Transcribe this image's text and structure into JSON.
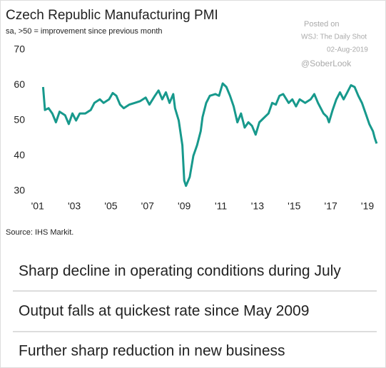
{
  "chart_data": {
    "type": "line",
    "title": "Czech Republic Manufacturing PMI",
    "subtitle": "sa, >50 = improvement since previous month",
    "annotations": [
      "Posted on",
      "WSJ: The Daily Shot",
      "02-Aug-2019",
      "@SoberLook"
    ],
    "source": "Source: IHS Markit.",
    "color": "#17998c",
    "x": [
      2001.3,
      2001.4,
      2001.6,
      2001.8,
      2002.0,
      2002.2,
      2002.5,
      2002.7,
      2002.9,
      2003.1,
      2003.3,
      2003.6,
      2003.9,
      2004.1,
      2004.4,
      2004.6,
      2004.9,
      2005.1,
      2005.3,
      2005.5,
      2005.7,
      2006.0,
      2006.3,
      2006.6,
      2006.9,
      2007.1,
      2007.4,
      2007.6,
      2007.8,
      2008.0,
      2008.2,
      2008.4,
      2008.5,
      2008.7,
      2008.9,
      2009.0,
      2009.1,
      2009.3,
      2009.5,
      2009.7,
      2009.9,
      2010.0,
      2010.2,
      2010.4,
      2010.7,
      2010.9,
      2011.1,
      2011.3,
      2011.5,
      2011.7,
      2011.9,
      2012.1,
      2012.3,
      2012.5,
      2012.7,
      2012.9,
      2013.1,
      2013.3,
      2013.6,
      2013.8,
      2014.0,
      2014.2,
      2014.4,
      2014.7,
      2014.9,
      2015.1,
      2015.3,
      2015.6,
      2015.9,
      2016.1,
      2016.3,
      2016.6,
      2016.8,
      2016.9,
      2017.1,
      2017.3,
      2017.5,
      2017.7,
      2017.9,
      2018.1,
      2018.3,
      2018.5,
      2018.7,
      2018.9,
      2019.1,
      2019.3,
      2019.4,
      2019.5
    ],
    "values": [
      59.5,
      53,
      53.5,
      52,
      49.5,
      52.5,
      51.5,
      49,
      52,
      50,
      52,
      52,
      53,
      55,
      56,
      55,
      56,
      57.8,
      57,
      54.5,
      53.5,
      54.5,
      55,
      55.5,
      56.5,
      54.5,
      57,
      58.5,
      56,
      58,
      55,
      57.5,
      53.5,
      50,
      43,
      33,
      31.5,
      34,
      40,
      43,
      47,
      51,
      55,
      57,
      57.5,
      57,
      60.5,
      59.5,
      57,
      54,
      49.5,
      52,
      48,
      49.5,
      48.5,
      46,
      49.5,
      50.5,
      52,
      55,
      54.5,
      57,
      57.5,
      55,
      56,
      54,
      56,
      55,
      56,
      57.5,
      55,
      52,
      51,
      49.5,
      53,
      56,
      58,
      56,
      58,
      60,
      59.5,
      57,
      55,
      52,
      49,
      47,
      45,
      43.5
    ],
    "xlim": [
      2000.7,
      2019.7
    ],
    "ylim": [
      30,
      70
    ],
    "yticks": [
      30,
      40,
      50,
      60,
      70
    ],
    "xticks": [
      {
        "value": 2001,
        "label": "'01"
      },
      {
        "value": 2003,
        "label": "'03"
      },
      {
        "value": 2005,
        "label": "'05"
      },
      {
        "value": 2007,
        "label": "'07"
      },
      {
        "value": 2009,
        "label": "'09"
      },
      {
        "value": 2011,
        "label": "'11"
      },
      {
        "value": 2013,
        "label": "'13"
      },
      {
        "value": 2015,
        "label": "'15"
      },
      {
        "value": 2017,
        "label": "'17"
      },
      {
        "value": 2019,
        "label": "'19"
      }
    ]
  },
  "headlines": [
    "Sharp decline in operating conditions during July",
    "Output falls at quickest rate since May 2009",
    "Further sharp reduction in new business"
  ]
}
